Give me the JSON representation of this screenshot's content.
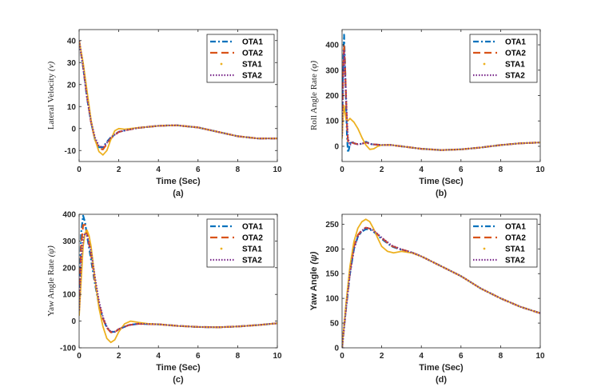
{
  "figure": {
    "series_styles": [
      {
        "name": "OTA1",
        "color": "#0072BD",
        "dash": "7,3,2,3",
        "width": 2.2
      },
      {
        "name": "OTA2",
        "color": "#D95319",
        "dash": "9,5",
        "width": 2.2
      },
      {
        "name": "STA1",
        "color": "#EDB120",
        "dash": "",
        "width": 1.8
      },
      {
        "name": "STA2",
        "color": "#7E2F8E",
        "dash": "1.5,2",
        "width": 2.2
      }
    ]
  },
  "chart_data": [
    {
      "id": "a",
      "type": "line",
      "panel_label": "(a)",
      "title": "",
      "xlabel": "Time (Sec)",
      "ylabel": "Lateral Velocity (v)",
      "ylabel_math": "(v)",
      "ylabel_prefix": "Lateral Velocity ",
      "ylabel_style": "serif",
      "xlim": [
        0,
        10
      ],
      "ylim": [
        -15,
        45
      ],
      "xticks": [
        0,
        2,
        4,
        6,
        8,
        10
      ],
      "yticks": [
        -10,
        0,
        10,
        20,
        30,
        40
      ],
      "legend": "top-right",
      "series": [
        {
          "name": "OTA1",
          "x": [
            0,
            0.2,
            0.4,
            0.6,
            0.8,
            1.0,
            1.2,
            1.4,
            1.6,
            2.0,
            2.5,
            3,
            3.5,
            4,
            4.5,
            5,
            6,
            7,
            8,
            9,
            10
          ],
          "y": [
            40,
            28,
            14,
            3,
            -5,
            -8.5,
            -8.5,
            -6,
            -4,
            -1.5,
            -0.5,
            0.3,
            0.8,
            1.2,
            1.4,
            1.4,
            0.5,
            -1.5,
            -3.5,
            -4.5,
            -4.5
          ]
        },
        {
          "name": "OTA2",
          "x": [
            0,
            0.2,
            0.4,
            0.6,
            0.8,
            1.0,
            1.2,
            1.4,
            1.6,
            2.0,
            2.5,
            3,
            3.5,
            4,
            4.5,
            5,
            6,
            7,
            8,
            9,
            10
          ],
          "y": [
            40,
            29,
            15,
            3,
            -5,
            -9,
            -9.5,
            -7,
            -4.5,
            -1.5,
            -0.5,
            0.3,
            0.8,
            1.2,
            1.4,
            1.4,
            0.5,
            -1.5,
            -3.5,
            -4.5,
            -4.5
          ]
        },
        {
          "name": "STA1",
          "x": [
            0,
            0.2,
            0.4,
            0.6,
            0.8,
            1.0,
            1.2,
            1.4,
            1.6,
            1.8,
            2.0,
            2.3,
            2.6,
            3,
            3.5,
            4,
            4.5,
            5,
            6,
            7,
            8,
            9,
            10
          ],
          "y": [
            40,
            30,
            17,
            4,
            -5,
            -10.5,
            -12,
            -10,
            -5,
            -1,
            0,
            -0.3,
            0,
            0.4,
            0.8,
            1.2,
            1.4,
            1.4,
            0.5,
            -1.5,
            -3.5,
            -4.5,
            -4.5
          ]
        },
        {
          "name": "STA2",
          "x": [
            0,
            0.2,
            0.4,
            0.6,
            0.8,
            1.0,
            1.2,
            1.4,
            1.6,
            2.0,
            2.5,
            3,
            3.5,
            4,
            4.5,
            5,
            6,
            7,
            8,
            9,
            10
          ],
          "y": [
            40,
            28,
            14,
            3,
            -4,
            -8,
            -8.5,
            -6.5,
            -4,
            -1.5,
            -0.5,
            0.3,
            0.8,
            1.2,
            1.4,
            1.4,
            0.5,
            -1.5,
            -3.5,
            -4.5,
            -4.5
          ]
        }
      ]
    },
    {
      "id": "b",
      "type": "line",
      "panel_label": "(b)",
      "title": "",
      "xlabel": "Time (Sec)",
      "ylabel": "Roll Angle Rate (φ̇)",
      "ylabel_math": "(φ̇)",
      "ylabel_prefix": "Roll Angle Rate ",
      "ylabel_style": "serif",
      "xlim": [
        0,
        10
      ],
      "ylim": [
        -60,
        460
      ],
      "xticks": [
        0,
        2,
        4,
        6,
        8,
        10
      ],
      "yticks": [
        0,
        100,
        200,
        300,
        400
      ],
      "legend": "top-right",
      "series": [
        {
          "name": "OTA1",
          "x": [
            0,
            0.05,
            0.1,
            0.15,
            0.2,
            0.25,
            0.3,
            0.35,
            0.4,
            0.5,
            0.6,
            0.8,
            1.0,
            1.2,
            1.5,
            2,
            2.5,
            3,
            4,
            5,
            6,
            7,
            8,
            9,
            10
          ],
          "y": [
            60,
            300,
            440,
            330,
            160,
            40,
            -25,
            -10,
            10,
            20,
            12,
            8,
            10,
            18,
            8,
            5,
            5,
            0,
            -10,
            -15,
            -12,
            -5,
            5,
            12,
            15
          ]
        },
        {
          "name": "OTA2",
          "x": [
            0,
            0.05,
            0.1,
            0.15,
            0.2,
            0.25,
            0.3,
            0.4,
            0.5,
            0.6,
            0.8,
            1.0,
            1.2,
            1.5,
            2,
            2.5,
            3,
            4,
            5,
            6,
            7,
            8,
            9,
            10
          ],
          "y": [
            50,
            280,
            400,
            320,
            190,
            80,
            20,
            10,
            15,
            12,
            8,
            10,
            15,
            8,
            5,
            5,
            0,
            -10,
            -15,
            -12,
            -5,
            5,
            12,
            15
          ]
        },
        {
          "name": "STA1",
          "x": [
            0,
            0.05,
            0.1,
            0.15,
            0.2,
            0.3,
            0.4,
            0.6,
            0.8,
            1.0,
            1.2,
            1.4,
            1.6,
            1.8,
            2.0,
            2.5,
            3,
            4,
            5,
            6,
            7,
            8,
            9,
            10
          ],
          "y": [
            30,
            120,
            160,
            130,
            105,
            100,
            110,
            95,
            70,
            35,
            5,
            -12,
            -10,
            0,
            5,
            5,
            0,
            -10,
            -15,
            -12,
            -5,
            5,
            12,
            15
          ]
        },
        {
          "name": "STA2",
          "x": [
            0,
            0.05,
            0.1,
            0.15,
            0.2,
            0.25,
            0.3,
            0.4,
            0.5,
            0.6,
            0.8,
            1.0,
            1.2,
            1.5,
            2,
            2.5,
            3,
            4,
            5,
            6,
            7,
            8,
            9,
            10
          ],
          "y": [
            40,
            250,
            380,
            300,
            200,
            100,
            30,
            5,
            15,
            12,
            8,
            10,
            15,
            8,
            5,
            5,
            0,
            -10,
            -15,
            -12,
            -5,
            5,
            12,
            15
          ]
        }
      ]
    },
    {
      "id": "c",
      "type": "line",
      "panel_label": "(c)",
      "title": "",
      "xlabel": "Time (Sec)",
      "ylabel": "Yaw Angle Rate (ψ̇)",
      "ylabel_math": "(ψ̇)",
      "ylabel_prefix": "Yaw Angle Rate ",
      "ylabel_style": "serif",
      "xlim": [
        0,
        10
      ],
      "ylim": [
        -100,
        400
      ],
      "xticks": [
        0,
        2,
        4,
        6,
        8,
        10
      ],
      "yticks": [
        -100,
        0,
        100,
        200,
        300,
        400
      ],
      "legend": "top-right",
      "series": [
        {
          "name": "OTA1",
          "x": [
            0,
            0.1,
            0.2,
            0.3,
            0.4,
            0.6,
            0.8,
            1.0,
            1.2,
            1.4,
            1.6,
            1.8,
            2.0,
            2.5,
            3,
            4,
            5,
            6,
            7,
            8,
            9,
            10
          ],
          "y": [
            80,
            330,
            395,
            370,
            320,
            230,
            140,
            60,
            10,
            -25,
            -40,
            -40,
            -30,
            -15,
            -10,
            -12,
            -18,
            -22,
            -23,
            -20,
            -15,
            -8
          ]
        },
        {
          "name": "OTA2",
          "x": [
            0,
            0.1,
            0.2,
            0.3,
            0.4,
            0.6,
            0.8,
            1.0,
            1.2,
            1.4,
            1.6,
            1.8,
            2.0,
            2.5,
            3,
            4,
            5,
            6,
            7,
            8,
            9,
            10
          ],
          "y": [
            50,
            280,
            360,
            360,
            330,
            250,
            150,
            65,
            10,
            -25,
            -42,
            -42,
            -30,
            -15,
            -10,
            -12,
            -18,
            -22,
            -23,
            -20,
            -15,
            -8
          ]
        },
        {
          "name": "STA1",
          "x": [
            0,
            0.1,
            0.2,
            0.3,
            0.4,
            0.5,
            0.6,
            0.8,
            1.0,
            1.2,
            1.4,
            1.6,
            1.8,
            2.0,
            2.3,
            2.6,
            3.0,
            3.5,
            4,
            5,
            6,
            7,
            8,
            9,
            10
          ],
          "y": [
            20,
            150,
            280,
            330,
            340,
            320,
            280,
            160,
            50,
            -20,
            -65,
            -80,
            -70,
            -40,
            -10,
            0,
            -5,
            -10,
            -12,
            -18,
            -22,
            -23,
            -20,
            -15,
            -8
          ]
        },
        {
          "name": "STA2",
          "x": [
            0,
            0.1,
            0.2,
            0.3,
            0.4,
            0.6,
            0.8,
            1.0,
            1.2,
            1.4,
            1.6,
            1.8,
            2.0,
            2.5,
            3,
            4,
            5,
            6,
            7,
            8,
            9,
            10
          ],
          "y": [
            40,
            230,
            310,
            330,
            320,
            260,
            165,
            75,
            15,
            -22,
            -40,
            -40,
            -30,
            -15,
            -10,
            -12,
            -18,
            -22,
            -23,
            -20,
            -15,
            -8
          ]
        }
      ]
    },
    {
      "id": "d",
      "type": "line",
      "panel_label": "(d)",
      "title": "",
      "xlabel": "Time (Sec)",
      "ylabel": "Yaw Angle (ψ)",
      "ylabel_math": "(ψ)",
      "ylabel_prefix": "Yaw Angle ",
      "ylabel_style": "sans",
      "xlim": [
        0,
        10
      ],
      "ylim": [
        0,
        270
      ],
      "xticks": [
        0,
        2,
        4,
        6,
        8,
        10
      ],
      "yticks": [
        0,
        50,
        100,
        150,
        200,
        250
      ],
      "legend": "top-right",
      "series": [
        {
          "name": "OTA1",
          "x": [
            0,
            0.2,
            0.4,
            0.6,
            0.8,
            1.0,
            1.2,
            1.5,
            2.0,
            2.5,
            3,
            3.5,
            4,
            5,
            6,
            7,
            8,
            9,
            10
          ],
          "y": [
            0,
            80,
            150,
            200,
            225,
            235,
            240,
            238,
            220,
            205,
            198,
            193,
            185,
            165,
            145,
            120,
            100,
            83,
            70
          ]
        },
        {
          "name": "OTA2",
          "x": [
            0,
            0.2,
            0.4,
            0.6,
            0.8,
            1.0,
            1.2,
            1.5,
            2.0,
            2.5,
            3,
            3.5,
            4,
            5,
            6,
            7,
            8,
            9,
            10
          ],
          "y": [
            0,
            85,
            155,
            205,
            228,
            238,
            243,
            240,
            222,
            206,
            199,
            193,
            185,
            165,
            145,
            120,
            100,
            83,
            70
          ]
        },
        {
          "name": "STA1",
          "x": [
            0,
            0.2,
            0.4,
            0.6,
            0.8,
            1.0,
            1.2,
            1.4,
            1.6,
            1.8,
            2.0,
            2.3,
            2.6,
            3,
            3.5,
            4,
            5,
            6,
            7,
            8,
            9,
            10
          ],
          "y": [
            0,
            90,
            165,
            215,
            242,
            255,
            260,
            255,
            240,
            222,
            205,
            195,
            192,
            195,
            192,
            185,
            165,
            145,
            120,
            100,
            83,
            70
          ]
        },
        {
          "name": "STA2",
          "x": [
            0,
            0.2,
            0.4,
            0.6,
            0.8,
            1.0,
            1.2,
            1.5,
            2.0,
            2.5,
            3,
            3.5,
            4,
            5,
            6,
            7,
            8,
            9,
            10
          ],
          "y": [
            0,
            80,
            150,
            200,
            225,
            237,
            243,
            240,
            223,
            207,
            199,
            193,
            185,
            165,
            145,
            120,
            100,
            83,
            70
          ]
        }
      ]
    }
  ]
}
